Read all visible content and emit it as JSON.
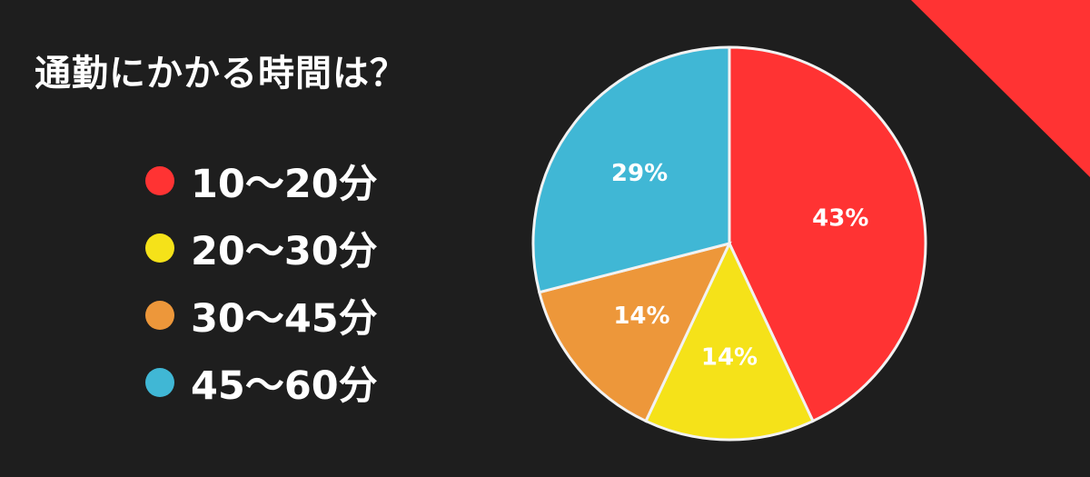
{
  "title": "通勤にかかる時間は？",
  "colors": {
    "background": "#1e1e1e",
    "accent_corner": "#ff3333"
  },
  "legend": {
    "items": [
      {
        "label": "10〜20分",
        "color": "#ff3333"
      },
      {
        "label": "20〜30分",
        "color": "#f5e219"
      },
      {
        "label": "30〜45分",
        "color": "#ed973a"
      },
      {
        "label": "45〜60分",
        "color": "#40b7d5"
      }
    ]
  },
  "chart_data": {
    "type": "pie",
    "title": "通勤にかかる時間は？",
    "categories": [
      "10〜20分",
      "20〜30分",
      "30〜45分",
      "45〜60分"
    ],
    "values": [
      43,
      14,
      14,
      29
    ],
    "labels": [
      "43%",
      "14%",
      "14%",
      "29%"
    ],
    "colors": [
      "#ff3333",
      "#f5e219",
      "#ed973a",
      "#40b7d5"
    ],
    "start": "top",
    "direction": "clockwise",
    "legend_position": "left"
  }
}
